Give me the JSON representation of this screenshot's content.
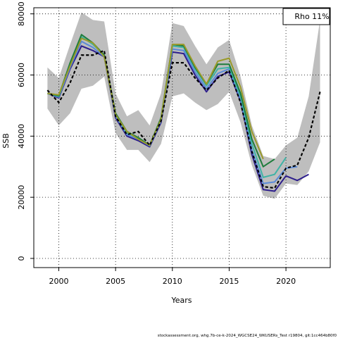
{
  "chart_data": {
    "type": "line",
    "title": "",
    "xlabel": "Years",
    "ylabel": "SSB",
    "xlim": [
      1997.8,
      2023.9
    ],
    "ylim": [
      -3000,
      82000
    ],
    "x_ticks": [
      2000,
      2005,
      2010,
      2015,
      2020
    ],
    "y_ticks": [
      0,
      20000,
      40000,
      60000,
      80000
    ],
    "grid": true,
    "grid_style": "dotted",
    "legend": {
      "text": "Rho 11%",
      "placement": "top-right"
    },
    "footer": "stockassessment.org, whg.7b-ce-k-2024_WGCSE24_WKUSERs_Test r19804, git:1cc464b80f0",
    "confidence_band": {
      "color": "#bebebe",
      "x": [
        1999,
        2000,
        2001,
        2002,
        2003,
        2004,
        2005,
        2006,
        2007,
        2008,
        2009,
        2010,
        2011,
        2012,
        2013,
        2014,
        2015,
        2016,
        2017,
        2018,
        2019,
        2020,
        2021,
        2022,
        2023
      ],
      "lower": [
        49000,
        43500,
        47500,
        55500,
        56500,
        59500,
        41000,
        35500,
        35500,
        31500,
        37500,
        53000,
        54000,
        51000,
        48500,
        50500,
        54500,
        44500,
        30500,
        20500,
        19500,
        24500,
        24000,
        28500,
        38000
      ],
      "upper": [
        62500,
        59000,
        70000,
        80500,
        78000,
        77500,
        54000,
        46500,
        48500,
        43500,
        54000,
        77000,
        76000,
        69500,
        63500,
        69000,
        71500,
        59500,
        43500,
        33500,
        32500,
        37000,
        39500,
        53000,
        78000
      ]
    },
    "series": [
      {
        "color": "#000000",
        "dashed": true,
        "x": [
          1999,
          2000,
          2001,
          2002,
          2003,
          2004,
          2005,
          2006,
          2007,
          2008,
          2009,
          2010,
          2011,
          2012,
          2013,
          2014,
          2015,
          2016,
          2017,
          2018,
          2019,
          2020,
          2021,
          2022,
          2023
        ],
        "values": [
          55000,
          51000,
          57500,
          66500,
          66500,
          68000,
          46500,
          40500,
          41500,
          37000,
          45000,
          64000,
          64000,
          59000,
          55000,
          59000,
          61500,
          51000,
          35000,
          23500,
          23000,
          29500,
          30500,
          39500,
          54500
        ]
      },
      {
        "color": "#2d1e8c",
        "x": [
          1999,
          2000,
          2001,
          2002,
          2003,
          2004,
          2005,
          2006,
          2007,
          2008,
          2009,
          2010,
          2011,
          2012,
          2013,
          2014,
          2015,
          2016,
          2017,
          2018,
          2019,
          2020,
          2021,
          2022
        ],
        "values": [
          54000,
          52500,
          62000,
          69500,
          68000,
          66000,
          46000,
          40000,
          38500,
          36500,
          44500,
          67500,
          67000,
          60000,
          54500,
          59500,
          61000,
          51500,
          34000,
          22500,
          22000,
          27000,
          25500,
          27500
        ]
      },
      {
        "color": "#5a8ad8",
        "x": [
          1999,
          2000,
          2001,
          2002,
          2003,
          2004,
          2005,
          2006,
          2007,
          2008,
          2009,
          2010,
          2011,
          2012,
          2013,
          2014,
          2015,
          2016,
          2017,
          2018,
          2019,
          2020,
          2021
        ],
        "values": [
          54000,
          52800,
          62500,
          71000,
          69000,
          66000,
          46500,
          40500,
          39000,
          36800,
          45000,
          68500,
          68000,
          61000,
          55500,
          60500,
          62000,
          52000,
          35500,
          24500,
          25000,
          29500,
          30000
        ]
      },
      {
        "color": "#3fb3a6",
        "x": [
          1999,
          2000,
          2001,
          2002,
          2003,
          2004,
          2005,
          2006,
          2007,
          2008,
          2009,
          2010,
          2011,
          2012,
          2013,
          2014,
          2015,
          2016,
          2017,
          2018,
          2019,
          2020
        ],
        "values": [
          54000,
          53000,
          63500,
          72500,
          70000,
          66500,
          47000,
          41000,
          39500,
          37000,
          45500,
          69500,
          69000,
          62000,
          56500,
          62000,
          62500,
          53000,
          37500,
          26500,
          27500,
          33000
        ]
      },
      {
        "color": "#1e7c3c",
        "x": [
          1999,
          2000,
          2001,
          2002,
          2003,
          2004,
          2005,
          2006,
          2007,
          2008,
          2009,
          2010,
          2011,
          2012,
          2013,
          2014,
          2015,
          2016,
          2017,
          2018,
          2019
        ],
        "values": [
          54000,
          53200,
          64000,
          73200,
          70500,
          66500,
          47500,
          41500,
          39500,
          37000,
          46000,
          70000,
          69500,
          62500,
          57000,
          63500,
          63500,
          54000,
          39000,
          30000,
          32500
        ]
      },
      {
        "color": "#9a9a2a",
        "x": [
          1999,
          2000,
          2001,
          2002,
          2003,
          2004,
          2005,
          2006,
          2007,
          2008,
          2009,
          2010,
          2011,
          2012,
          2013,
          2014,
          2015,
          2016,
          2017,
          2018
        ],
        "values": [
          54000,
          53500,
          63000,
          72000,
          70500,
          66000,
          47000,
          41500,
          39000,
          37000,
          45500,
          70000,
          70000,
          63000,
          57000,
          64500,
          65500,
          56000,
          41500,
          32500
        ]
      }
    ]
  }
}
